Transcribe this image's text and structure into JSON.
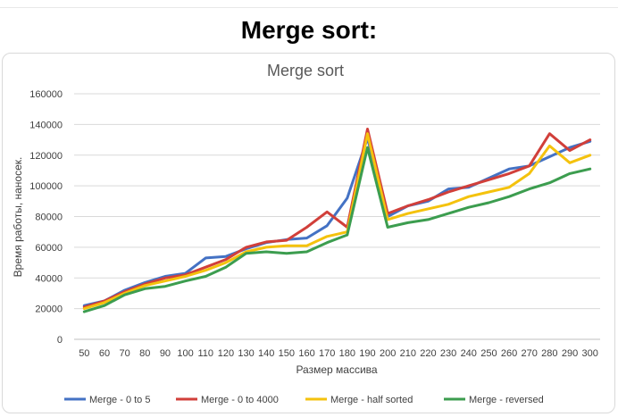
{
  "page": {
    "heading": "Merge sort:"
  },
  "chart_data": {
    "type": "line",
    "title": "Merge sort",
    "xlabel": "Размер массива",
    "ylabel": "Время работы, наносек.",
    "x": [
      50,
      60,
      70,
      80,
      90,
      100,
      110,
      120,
      130,
      140,
      150,
      160,
      170,
      180,
      190,
      200,
      210,
      220,
      230,
      240,
      250,
      260,
      270,
      280,
      290,
      300
    ],
    "ylim": [
      0,
      160000
    ],
    "yticks": [
      0,
      20000,
      40000,
      60000,
      80000,
      100000,
      120000,
      140000,
      160000
    ],
    "grid": true,
    "legend": "bottom",
    "series": [
      {
        "name": "Merge - 0 to 5",
        "color": "#4472c4",
        "values": [
          22000,
          25000,
          32000,
          37000,
          41000,
          43000,
          53000,
          54000,
          59000,
          63000,
          65000,
          66000,
          74000,
          92000,
          131000,
          80000,
          87000,
          90000,
          98000,
          99000,
          105000,
          111000,
          113000,
          119000,
          125000,
          129000
        ]
      },
      {
        "name": "Merge - 0 to 4000",
        "color": "#d13f3a",
        "values": [
          21000,
          25000,
          31000,
          36000,
          40000,
          42000,
          47000,
          52000,
          60000,
          63500,
          64500,
          73000,
          83000,
          73000,
          137000,
          82000,
          87000,
          91000,
          96000,
          100000,
          104000,
          108000,
          113000,
          134000,
          123000,
          130000
        ]
      },
      {
        "name": "Merge - half sorted",
        "color": "#f4c20d",
        "values": [
          20000,
          24000,
          30000,
          35000,
          38000,
          41000,
          45000,
          50000,
          57000,
          60000,
          61000,
          61000,
          67000,
          70000,
          134000,
          78000,
          82000,
          85000,
          88000,
          93000,
          96000,
          99000,
          108000,
          126000,
          115000,
          120000
        ]
      },
      {
        "name": "Merge - reversed",
        "color": "#3c9d4f",
        "values": [
          18000,
          22000,
          29000,
          33000,
          34500,
          38000,
          41000,
          47000,
          56000,
          57000,
          56000,
          57000,
          63000,
          68000,
          125000,
          73000,
          76000,
          78000,
          82000,
          86000,
          89000,
          93000,
          98000,
          102000,
          108000,
          111000
        ]
      }
    ]
  }
}
